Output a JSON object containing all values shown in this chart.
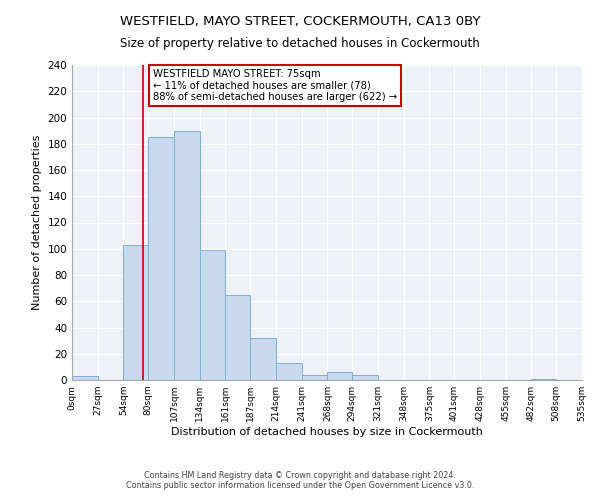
{
  "title": "WESTFIELD, MAYO STREET, COCKERMOUTH, CA13 0BY",
  "subtitle": "Size of property relative to detached houses in Cockermouth",
  "xlabel": "Distribution of detached houses by size in Cockermouth",
  "ylabel": "Number of detached properties",
  "bar_color": "#c8d8ee",
  "bar_edge_color": "#7bafd4",
  "background_color": "#ffffff",
  "plot_bg_color": "#eef2f8",
  "grid_color": "#ffffff",
  "bin_edges": [
    0,
    27,
    54,
    80,
    107,
    134,
    161,
    187,
    214,
    241,
    268,
    294,
    321,
    348,
    375,
    401,
    428,
    455,
    482,
    508,
    535
  ],
  "counts": [
    3,
    0,
    103,
    185,
    190,
    99,
    65,
    32,
    13,
    4,
    6,
    4,
    0,
    0,
    0,
    0,
    0,
    0,
    1,
    0
  ],
  "tick_labels": [
    "0sqm",
    "27sqm",
    "54sqm",
    "80sqm",
    "107sqm",
    "134sqm",
    "161sqm",
    "187sqm",
    "214sqm",
    "241sqm",
    "268sqm",
    "294sqm",
    "321sqm",
    "348sqm",
    "375sqm",
    "401sqm",
    "428sqm",
    "455sqm",
    "482sqm",
    "508sqm",
    "535sqm"
  ],
  "ylim": [
    0,
    240
  ],
  "yticks": [
    0,
    20,
    40,
    60,
    80,
    100,
    120,
    140,
    160,
    180,
    200,
    220,
    240
  ],
  "vline_x": 75,
  "vline_color": "#cc0000",
  "annotation_title": "WESTFIELD MAYO STREET: 75sqm",
  "annotation_line1": "← 11% of detached houses are smaller (78)",
  "annotation_line2": "88% of semi-detached houses are larger (622) →",
  "annotation_box_color": "#ffffff",
  "annotation_box_edge": "#cc0000",
  "footer_line1": "Contains HM Land Registry data © Crown copyright and database right 2024.",
  "footer_line2": "Contains public sector information licensed under the Open Government Licence v3.0."
}
